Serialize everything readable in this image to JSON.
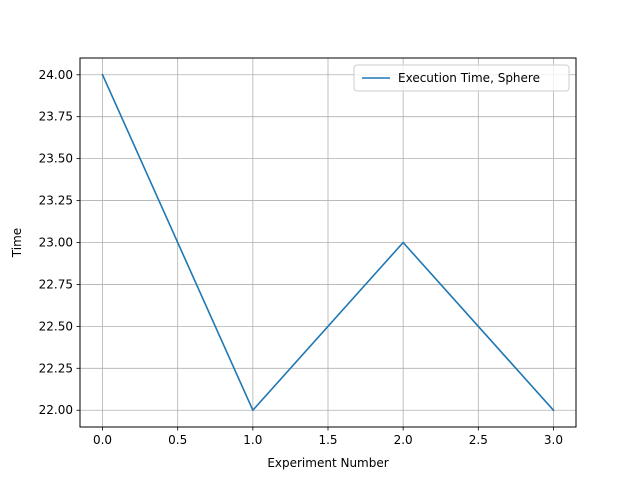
{
  "chart_data": {
    "type": "line",
    "title": "",
    "xlabel": "Experiment Number",
    "ylabel": "Time",
    "xlim": [
      -0.15,
      3.15
    ],
    "ylim": [
      21.9,
      24.1
    ],
    "x_ticks": [
      0.0,
      0.5,
      1.0,
      1.5,
      2.0,
      2.5,
      3.0
    ],
    "x_tick_labels": [
      "0.0",
      "0.5",
      "1.0",
      "1.5",
      "2.0",
      "2.5",
      "3.0"
    ],
    "y_ticks": [
      22.0,
      22.25,
      22.5,
      22.75,
      23.0,
      23.25,
      23.5,
      23.75,
      24.0
    ],
    "y_tick_labels": [
      "22.00",
      "22.25",
      "22.50",
      "22.75",
      "23.00",
      "23.25",
      "23.50",
      "23.75",
      "24.00"
    ],
    "grid": true,
    "legend_position": "top-right",
    "series": [
      {
        "name": "Execution Time, Sphere",
        "color": "#1f77b4",
        "x": [
          0,
          1,
          2,
          3
        ],
        "y": [
          24,
          22,
          23,
          22
        ]
      }
    ]
  }
}
